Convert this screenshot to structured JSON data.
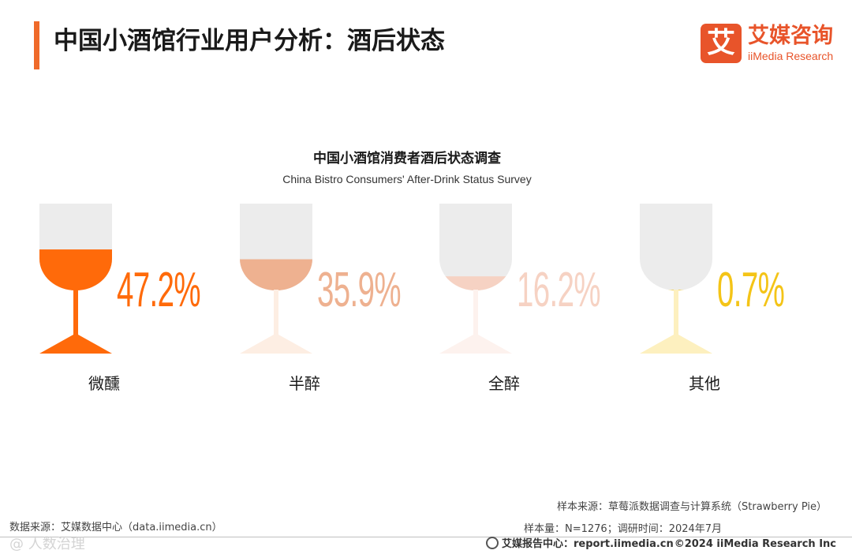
{
  "header": {
    "title": "中国小酒馆行业用户分析：酒后状态",
    "logo_mark": "艾",
    "logo_cn": "艾媒咨询",
    "logo_en": "iiMedia Research"
  },
  "chart_data": {
    "type": "pictorial-bar",
    "title": "中国小酒馆消费者酒后状态调查",
    "subtitle": "China Bistro Consumers' After-Drink Status Survey",
    "unit": "%",
    "categories": [
      "微醺",
      "半醉",
      "全醉",
      "其他"
    ],
    "values": [
      47.2,
      35.9,
      16.2,
      0.7
    ],
    "value_labels": [
      "47.2%",
      "35.9%",
      "16.2%",
      "0.7%"
    ],
    "colors": [
      "#ff6a0a",
      "#eeb190",
      "#f6d2c3",
      "#f4c417"
    ],
    "stem_colors": [
      "#ff6a0a",
      "#fdeee3",
      "#fdf2ee",
      "#fdf0bf"
    ],
    "empty_glass_color": "#ececec"
  },
  "footer": {
    "data_source": "数据来源：艾媒数据中心（data.iimedia.cn）",
    "sample_source": "样本来源：草莓派数据调查与计算系统（Strawberry Pie）",
    "sample_size": "样本量：N=1276；调研时间：2024年7月",
    "report_center": "艾媒报告中心：report.iimedia.cn",
    "copyright": "©2024  iiMedia Research  Inc",
    "watermark": "@ 人数治理"
  }
}
